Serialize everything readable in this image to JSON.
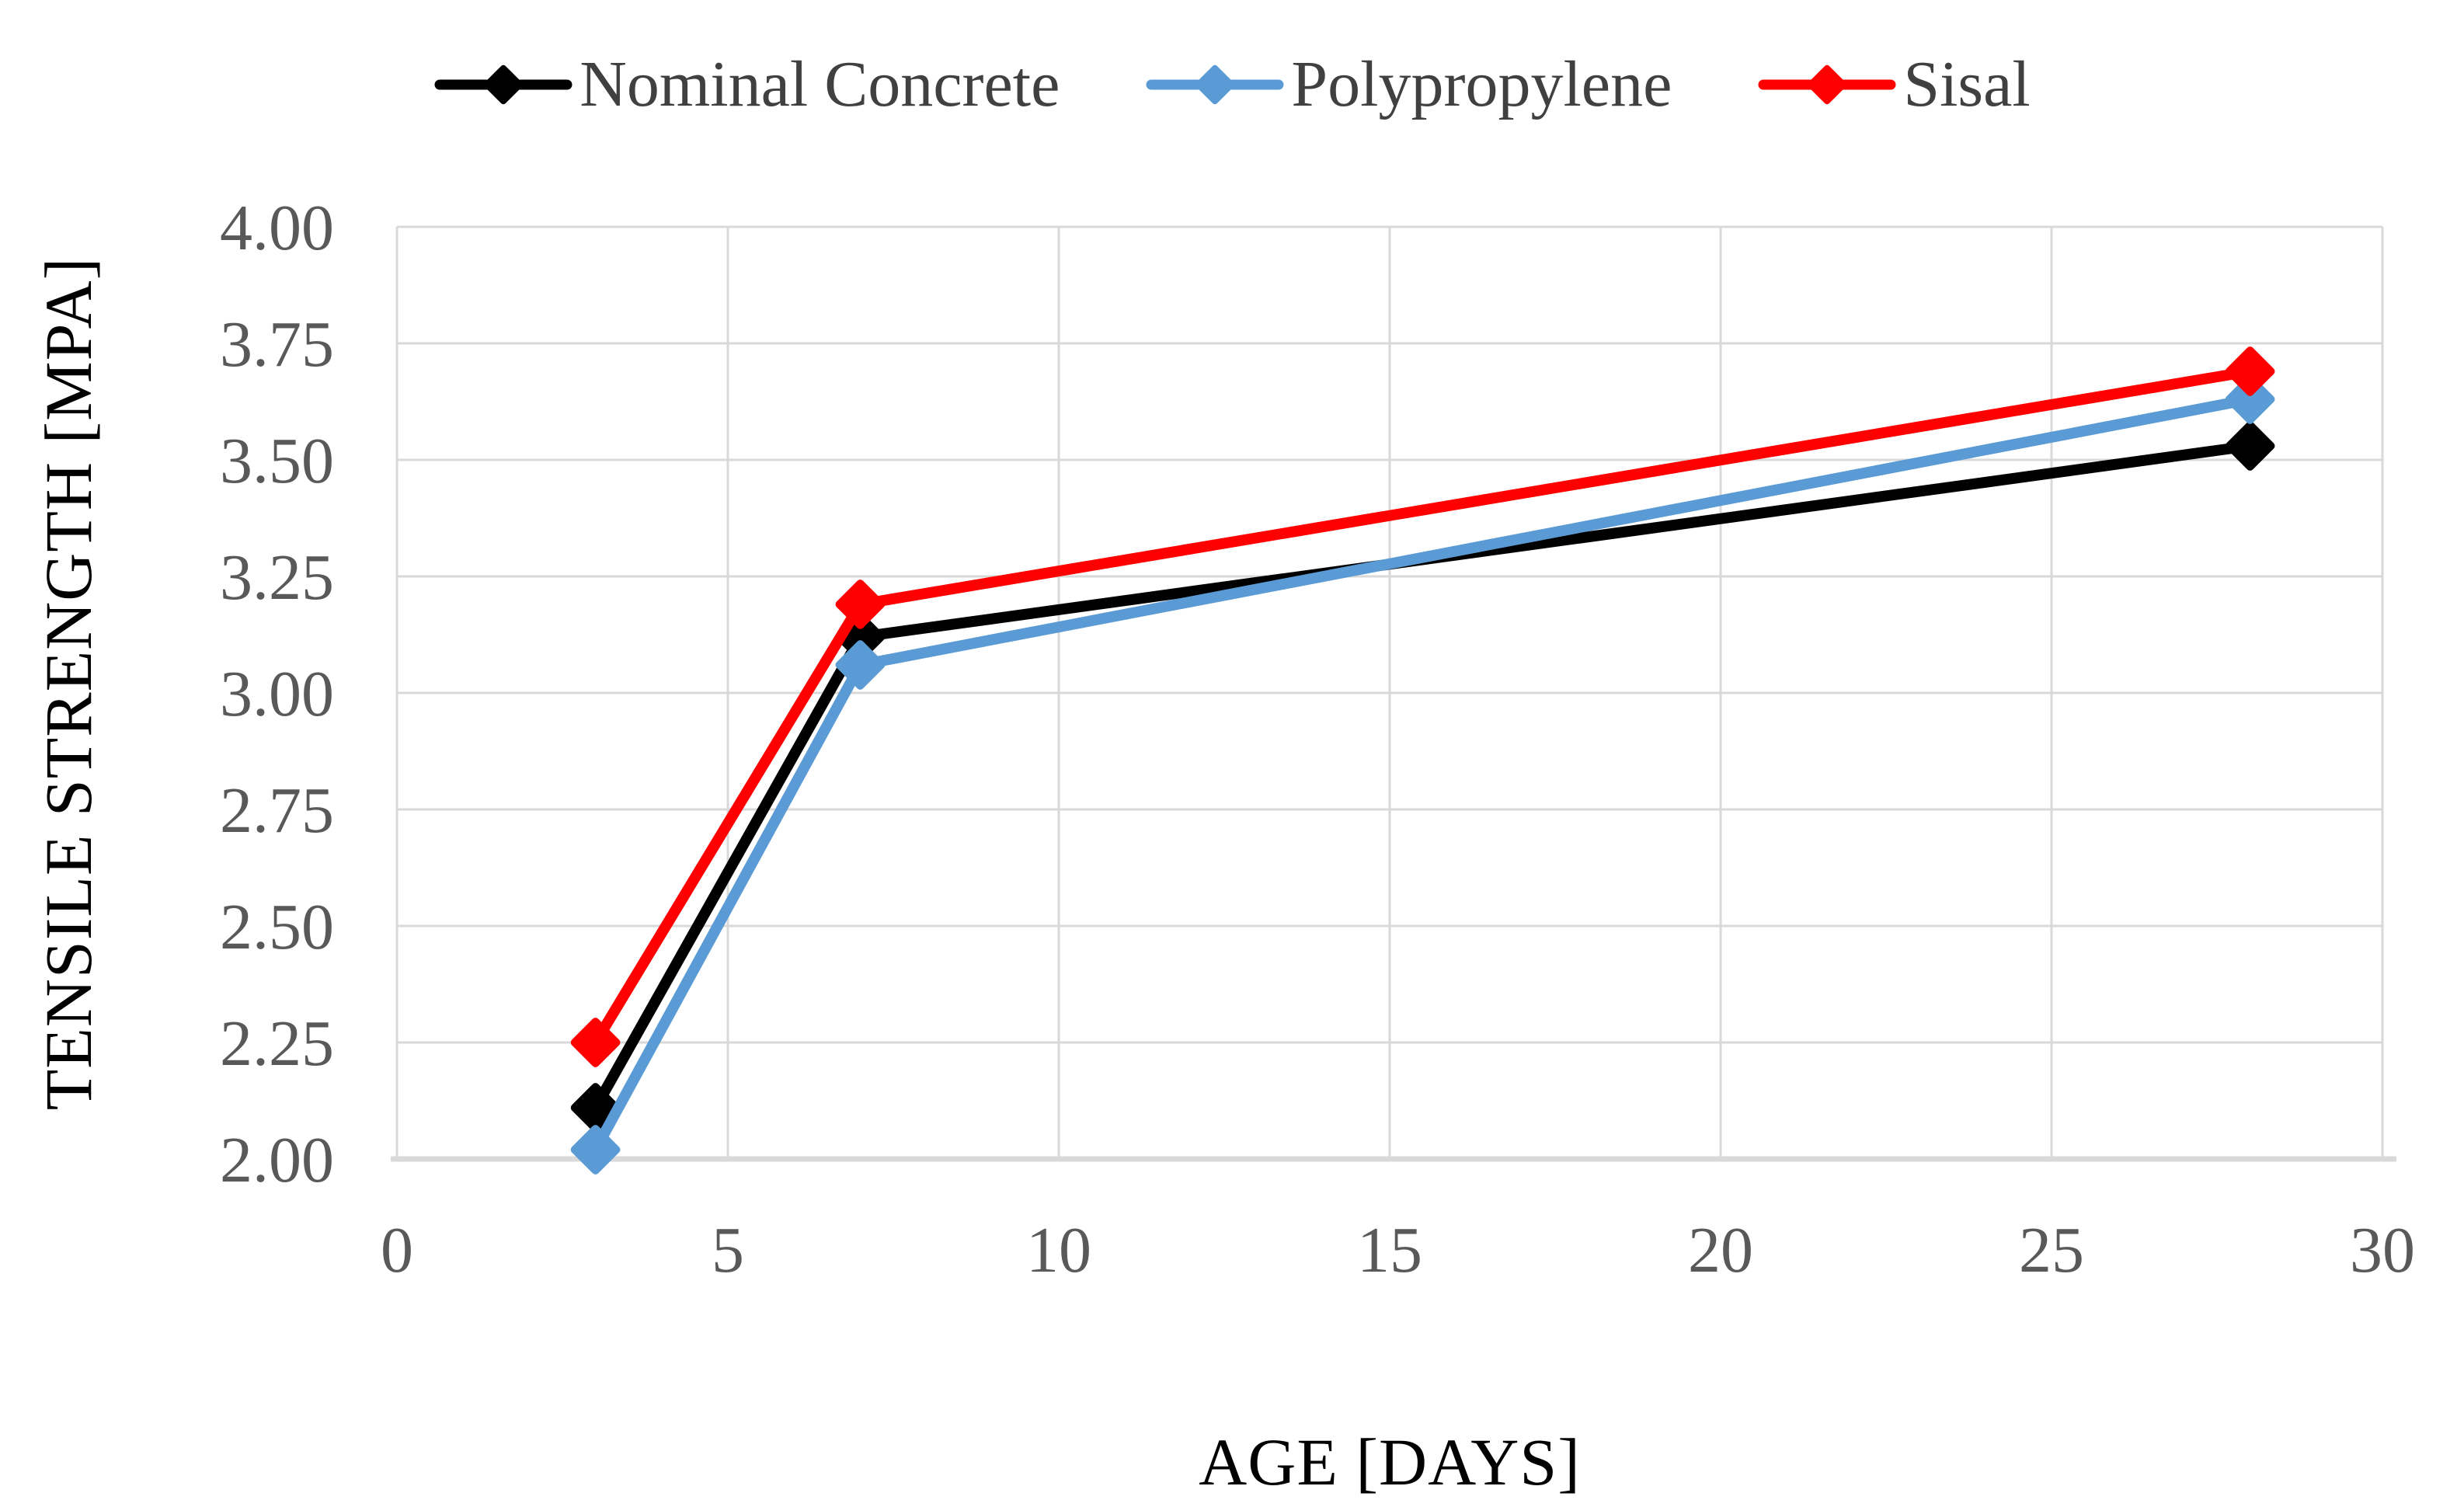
{
  "chart_data": {
    "type": "line",
    "title": "",
    "xlabel": "AGE [DAYS]",
    "ylabel": "TENSILE STRENGTH [MPA]",
    "x": [
      3,
      7,
      28
    ],
    "series": [
      {
        "name": "Nominal Concrete",
        "color": "#000000",
        "values": [
          2.11,
          3.12,
          3.53
        ]
      },
      {
        "name": "Polypropylene",
        "color": "#5B9BD5",
        "values": [
          2.02,
          3.06,
          3.63
        ]
      },
      {
        "name": "Sisal",
        "color": "#FF0000",
        "values": [
          2.25,
          3.19,
          3.69
        ]
      }
    ],
    "xlim": [
      0,
      30
    ],
    "ylim": [
      2.0,
      4.0
    ],
    "x_ticks": [
      "0",
      "5",
      "10",
      "15",
      "20",
      "25",
      "30"
    ],
    "y_ticks": [
      "4.00",
      "3.75",
      "3.50",
      "3.25",
      "3.00",
      "2.75",
      "2.50",
      "2.25",
      "2.00"
    ],
    "grid": true,
    "legend_position": "top",
    "marker": "diamond",
    "styles": {
      "grid_color": "#D9D9D9",
      "axis_line_color": "#D9D9D9",
      "tick_label_color": "#595959",
      "legend_text_color": "#404040",
      "axis_title_color": "#000000",
      "background": "#FFFFFF"
    }
  }
}
